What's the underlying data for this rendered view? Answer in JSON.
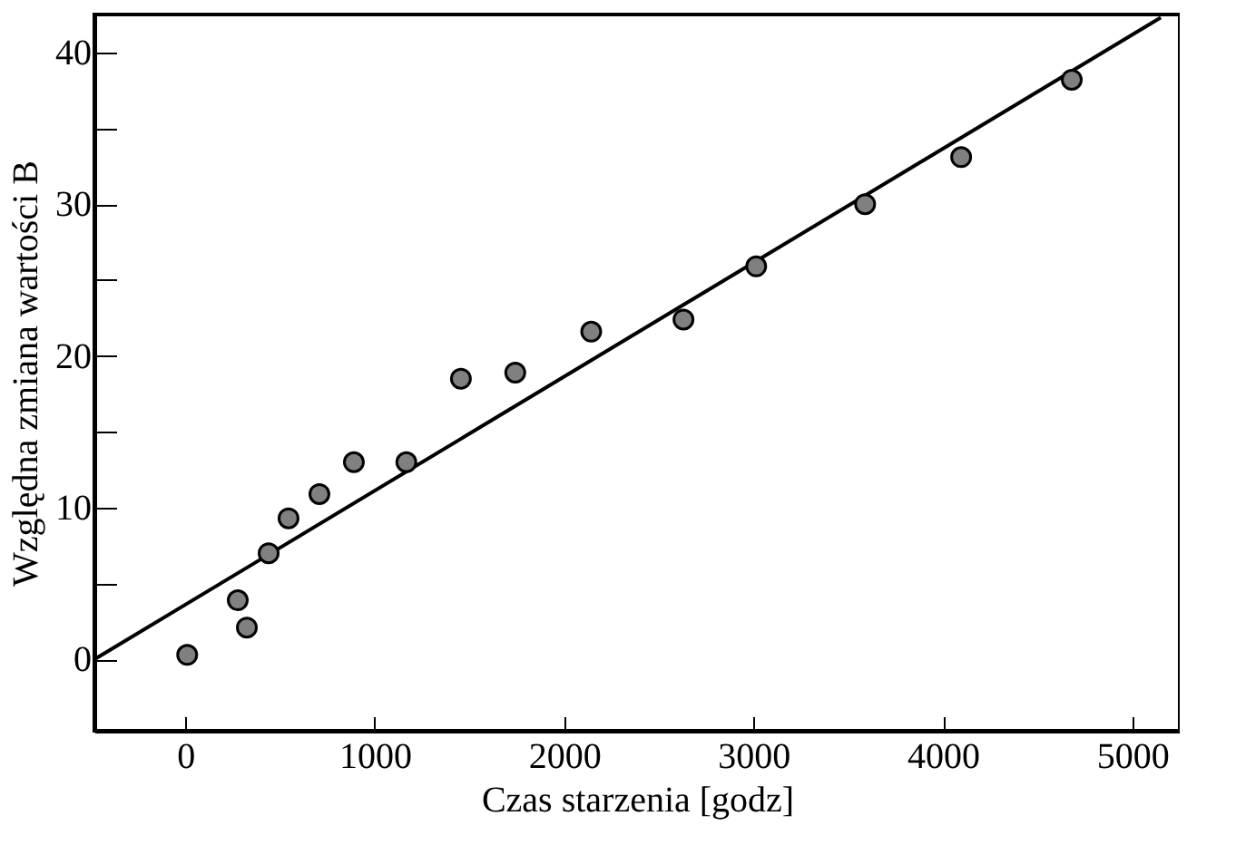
{
  "chart_data": {
    "type": "scatter",
    "xlabel": "Czas starzenia [godz]",
    "ylabel": "Względna zmiana wartości B",
    "xlim": [
      -480,
      5250
    ],
    "ylim": [
      -4.7,
      42.5
    ],
    "xticks": [
      0,
      1000,
      2000,
      3000,
      4000,
      5000
    ],
    "yticks": [
      0,
      {
        "value": 5,
        "label": null
      },
      10,
      {
        "value": 15,
        "label": null
      },
      20,
      {
        "value": 25,
        "label": null
      },
      30,
      {
        "value": 35,
        "label": null
      },
      40
    ],
    "grid": false,
    "series": [
      {
        "marker": "circle",
        "color": "#808080",
        "x": [
          10,
          277,
          325,
          440,
          545,
          708,
          890,
          1167,
          1455,
          1742,
          2143,
          2630,
          3014,
          3589,
          4096,
          4680
        ],
        "values": [
          0.3,
          3.9,
          2.1,
          7.0,
          9.3,
          10.9,
          13.0,
          13.0,
          18.5,
          18.9,
          21.6,
          22.4,
          25.9,
          30.0,
          33.1,
          38.2
        ]
      },
      {
        "type": "line",
        "marker": "none",
        "color": "#000000",
        "x": [
          -480,
          5150
        ],
        "values": [
          0,
          42.3
        ]
      }
    ]
  }
}
